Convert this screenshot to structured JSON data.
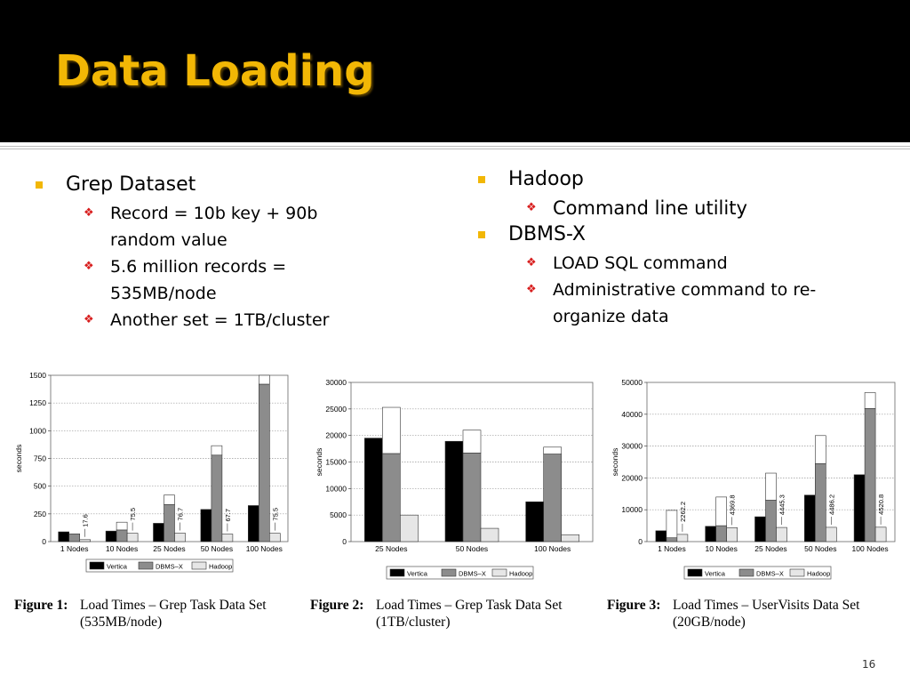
{
  "slide": {
    "title": "Data Loading",
    "page_number": "16"
  },
  "left_column": [
    {
      "text": "Grep Dataset",
      "children": [
        "Record = 10b key + 90b random value",
        "5.6 million records = 535MB/node",
        "Another set = 1TB/cluster"
      ]
    }
  ],
  "right_column": [
    {
      "text": "Hadoop",
      "children": [
        "Command line utility"
      ]
    },
    {
      "text": "DBMS-X",
      "children": [
        "LOAD SQL command",
        "Administrative command to re-organize data"
      ]
    }
  ],
  "legend": [
    "Vertica",
    "DBMS–X",
    "Hadoop"
  ],
  "colors": {
    "vertica": "#000000",
    "dbmsx": "#8c8c8c",
    "hadoop": "#e6e6e6",
    "bullet": "#f2b705",
    "diamond": "#d81e1e"
  },
  "chart_data": [
    {
      "type": "bar",
      "caption_label": "Figure 1:",
      "caption_text": "Load Times – Grep Task Data Set (535MB/node)",
      "ylabel": "seconds",
      "ylim": [
        0,
        1500
      ],
      "yticks": [
        "0",
        "250",
        "500",
        "750",
        "1000",
        "1250",
        "1500"
      ],
      "categories": [
        "1 Nodes",
        "10 Nodes",
        "25 Nodes",
        "50 Nodes",
        "100 Nodes"
      ],
      "series": [
        {
          "name": "Vertica",
          "values": [
            88,
            95,
            165,
            290,
            325
          ]
        },
        {
          "name": "DBMS–X",
          "values": [
            70,
            105,
            335,
            780,
            1420
          ],
          "total": [
            70,
            175,
            420,
            865,
            1500
          ]
        },
        {
          "name": "Hadoop",
          "values": [
            17.6,
            75.5,
            76.7,
            67.7,
            75.5
          ]
        }
      ],
      "hadoop_labels": [
        "17.6",
        "75.5",
        "76.7",
        "67.7",
        "75.5"
      ],
      "grid": true
    },
    {
      "type": "bar",
      "caption_label": "Figure 2:",
      "caption_text": "Load Times – Grep Task Data Set (1TB/cluster)",
      "ylabel": "seconds",
      "ylim": [
        0,
        30000
      ],
      "yticks": [
        "0",
        "5000",
        "10000",
        "15000",
        "20000",
        "25000",
        "30000"
      ],
      "categories": [
        "25 Nodes",
        "50 Nodes",
        "100 Nodes"
      ],
      "series": [
        {
          "name": "Vertica",
          "values": [
            19500,
            18900,
            7500
          ]
        },
        {
          "name": "DBMS–X",
          "values": [
            16600,
            16700,
            16500
          ],
          "total": [
            25300,
            21000,
            17800
          ]
        },
        {
          "name": "Hadoop",
          "values": [
            5000,
            2500,
            1300
          ]
        }
      ],
      "hadoop_labels": [],
      "grid": true
    },
    {
      "type": "bar",
      "caption_label": "Figure 3:",
      "caption_text": "Load Times – UserVisits Data Set (20GB/node)",
      "ylabel": "seconds",
      "ylim": [
        0,
        50000
      ],
      "yticks": [
        "0",
        "10000",
        "20000",
        "30000",
        "40000",
        "50000"
      ],
      "categories": [
        "1 Nodes",
        "10 Nodes",
        "25 Nodes",
        "50 Nodes",
        "100 Nodes"
      ],
      "series": [
        {
          "name": "Vertica",
          "values": [
            3400,
            4800,
            7800,
            14600,
            21000
          ]
        },
        {
          "name": "DBMS–X",
          "values": [
            1200,
            5000,
            13000,
            24500,
            41800
          ],
          "total": [
            9800,
            14000,
            21500,
            33300,
            46800
          ]
        },
        {
          "name": "Hadoop",
          "values": [
            2262.2,
            4369.8,
            4445.3,
            4486.2,
            4520.8
          ]
        }
      ],
      "hadoop_labels": [
        "2262.2",
        "4369.8",
        "4445.3",
        "4486.2",
        "4520.8"
      ],
      "grid": true
    }
  ]
}
